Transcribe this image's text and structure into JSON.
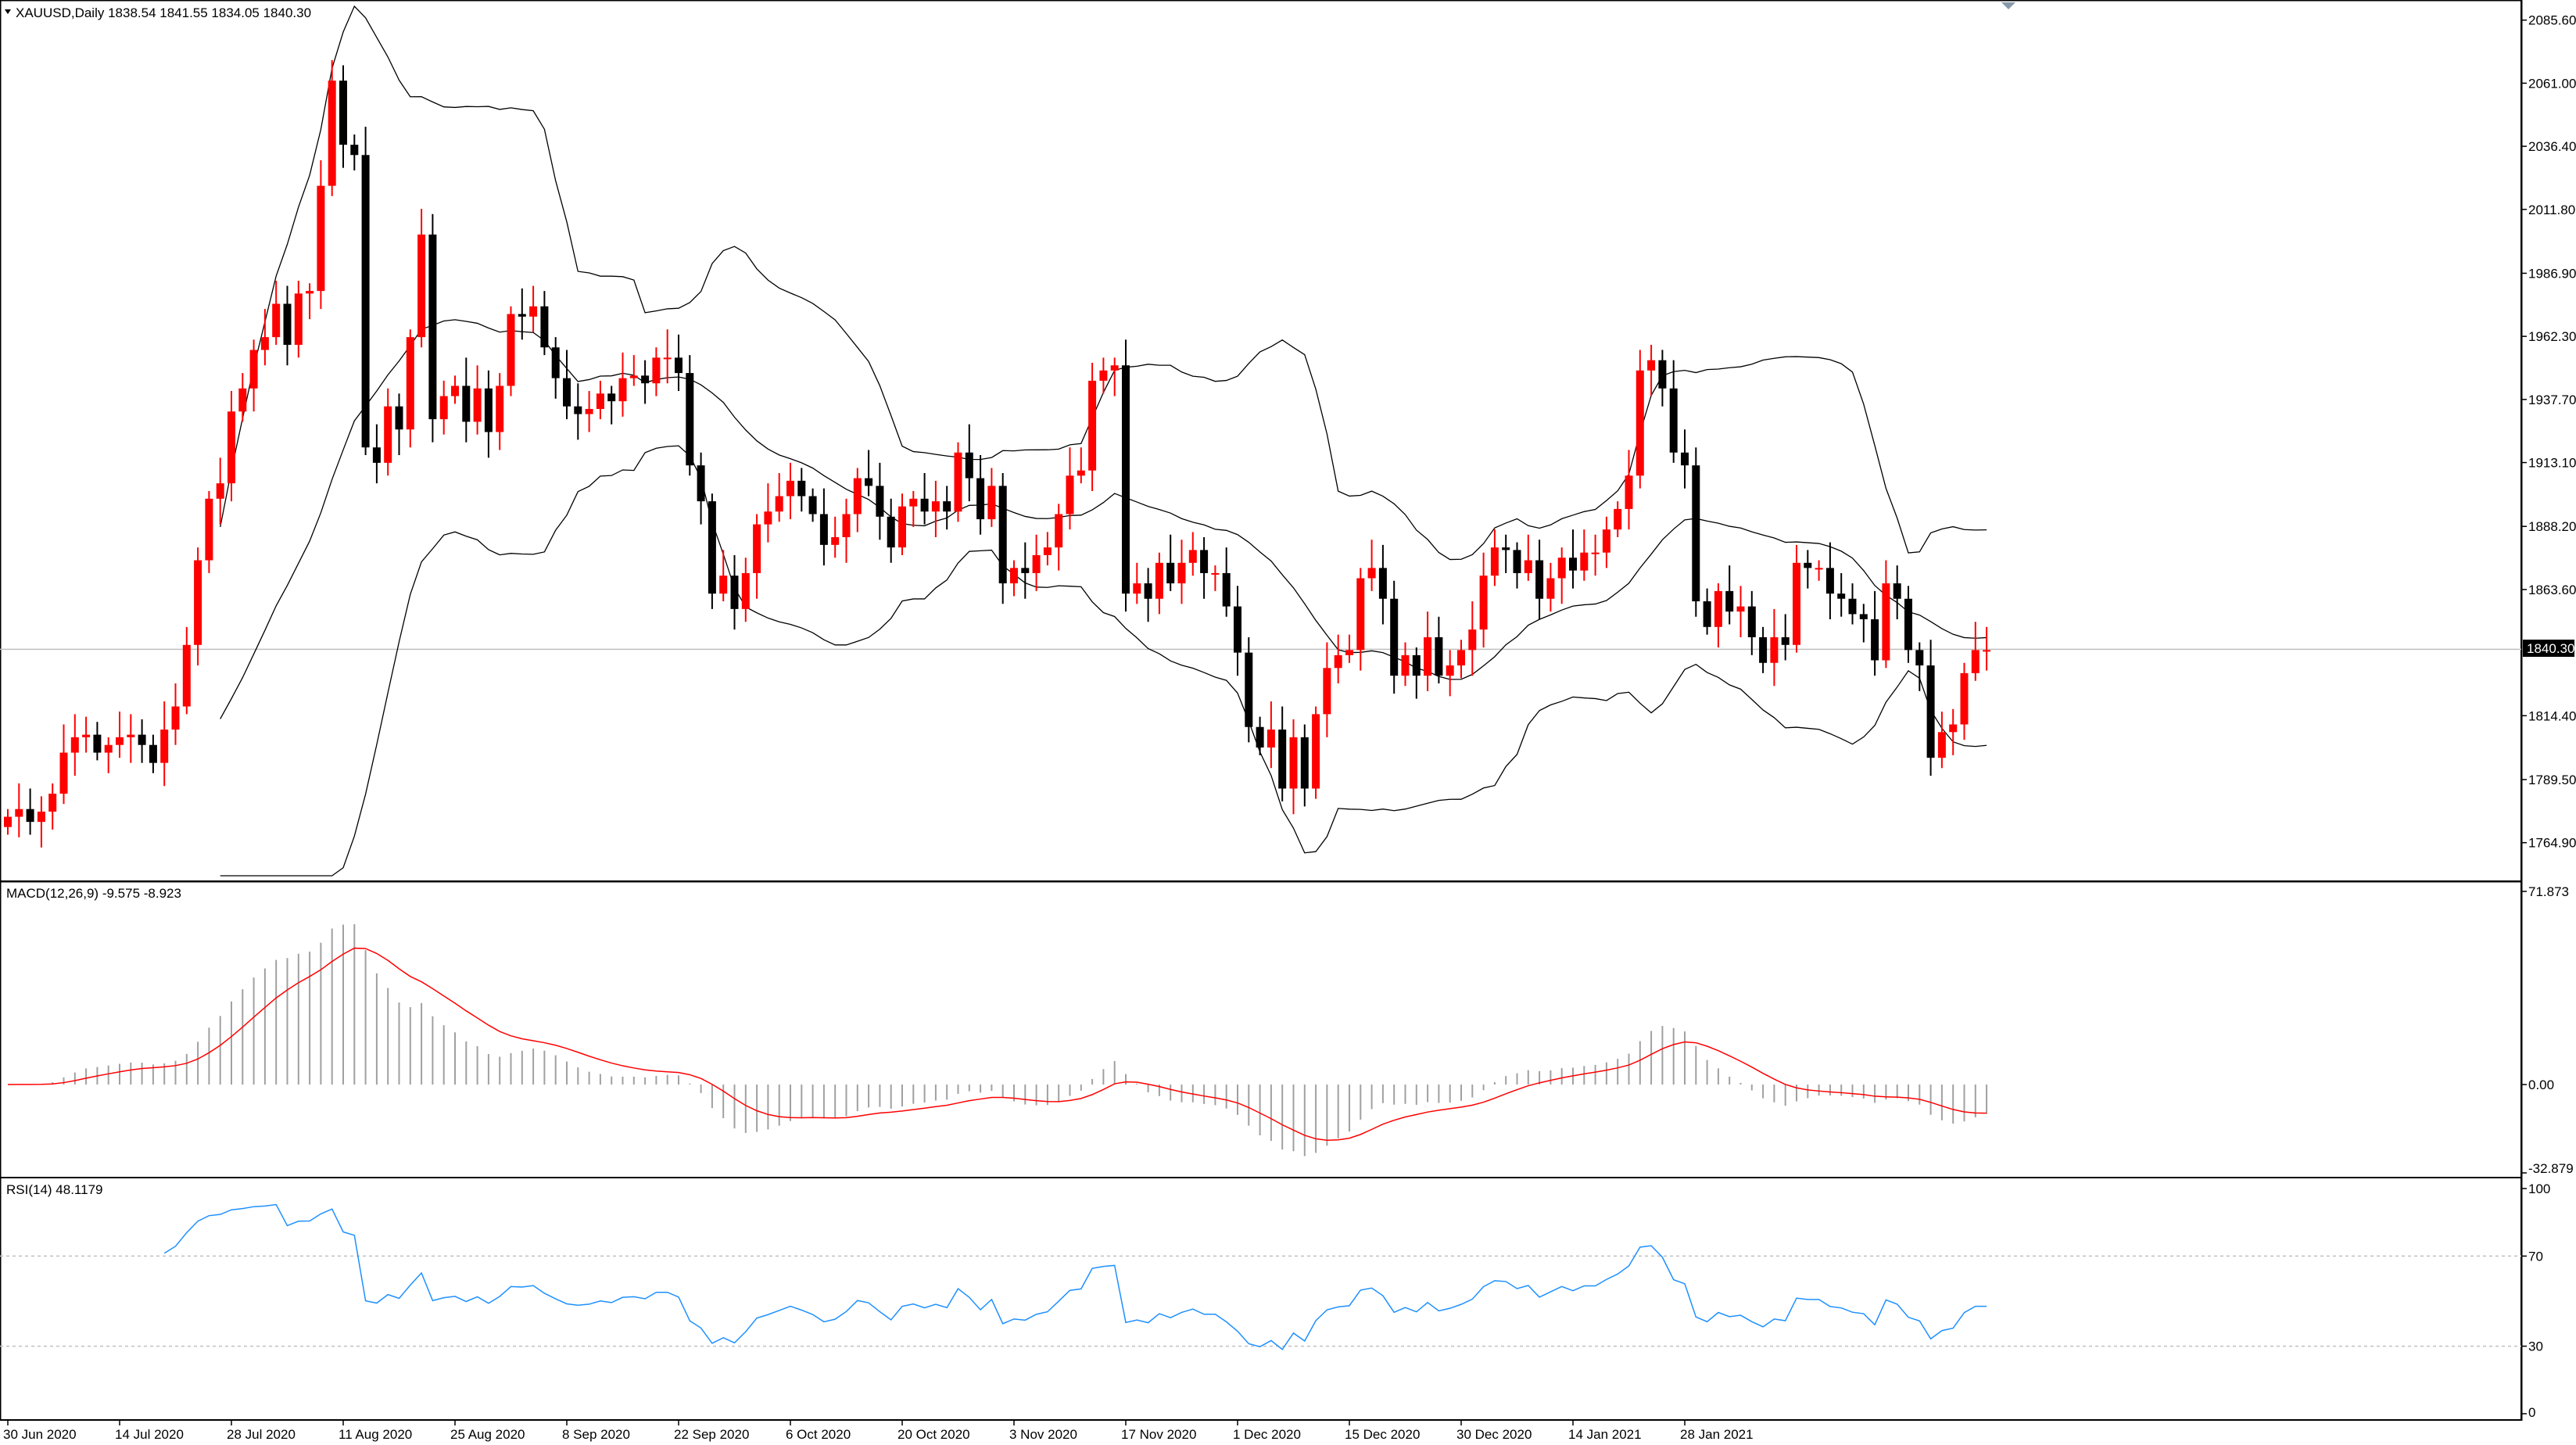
{
  "header": {
    "symbol_line": "XAUUSD,Daily  1838.54 1841.55 1834.05 1840.30",
    "macd_label": "MACD(12,26,9) -9.575 -8.923",
    "rsi_label": "RSI(14) 48.1179"
  },
  "colors": {
    "bull": "#ff0000",
    "bear": "#000000",
    "bands": "#000000",
    "macd_hist": "#a0a0a0",
    "macd_signal": "#ff0000",
    "rsi_line": "#1e90ff",
    "grid": "#c0c0c0"
  },
  "chart_data": [
    {
      "type": "candlestick",
      "symbol": "XAUUSD",
      "timeframe": "Daily",
      "indicator_overlay": "Bollinger Bands",
      "current_price": "1840.30",
      "ylim": [
        1752,
        2091
      ],
      "price_ticks": [
        "2085.60",
        "2061.00",
        "2036.40",
        "2011.80",
        "1986.90",
        "1962.30",
        "1937.70",
        "1913.10",
        "1888.20",
        "1863.60",
        "1814.40",
        "1789.50",
        "1764.90"
      ],
      "date_ticks": [
        {
          "index": 0,
          "label": "30 Jun 2020"
        },
        {
          "index": 10,
          "label": "14 Jul 2020"
        },
        {
          "index": 20,
          "label": "28 Jul 2020"
        },
        {
          "index": 30,
          "label": "11 Aug 2020"
        },
        {
          "index": 40,
          "label": "25 Aug 2020"
        },
        {
          "index": 50,
          "label": "8 Sep 2020"
        },
        {
          "index": 60,
          "label": "22 Sep 2020"
        },
        {
          "index": 70,
          "label": "6 Oct 2020"
        },
        {
          "index": 80,
          "label": "20 Oct 2020"
        },
        {
          "index": 90,
          "label": "3 Nov 2020"
        },
        {
          "index": 100,
          "label": "17 Nov 2020"
        },
        {
          "index": 110,
          "label": "1 Dec 2020"
        },
        {
          "index": 120,
          "label": "15 Dec 2020"
        },
        {
          "index": 130,
          "label": "30 Dec 2020"
        },
        {
          "index": 140,
          "label": "14 Jan 2021"
        },
        {
          "index": 150,
          "label": "28 Jan 2021"
        }
      ],
      "closes": [
        1775,
        1778,
        1773,
        1777,
        1784,
        1800,
        1806,
        1807,
        1800,
        1803,
        1806,
        1807,
        1803,
        1796,
        1809,
        1818,
        1842,
        1875,
        1899,
        1905,
        1933,
        1942,
        1957,
        1962,
        1975,
        1959,
        1979,
        1980,
        2021,
        2062,
        2037,
        2033,
        1919,
        1913,
        1935,
        1926,
        1962,
        2002,
        1930,
        1939,
        1943,
        1929,
        1942,
        1925,
        1943,
        1971,
        1970,
        1974,
        1958,
        1946,
        1935,
        1932,
        1934,
        1940,
        1937,
        1946,
        1947,
        1944,
        1954,
        1954,
        1948,
        1912,
        1898,
        1862,
        1869,
        1856,
        1870,
        1889,
        1894,
        1900,
        1906,
        1900,
        1893,
        1881,
        1884,
        1893,
        1907,
        1904,
        1892,
        1880,
        1896,
        1899,
        1894,
        1898,
        1894,
        1917,
        1907,
        1891,
        1904,
        1866,
        1872,
        1870,
        1877,
        1880,
        1893,
        1908,
        1910,
        1945,
        1949,
        1951,
        1862,
        1866,
        1860,
        1874,
        1866,
        1874,
        1879,
        1870,
        1870,
        1857,
        1839,
        1810,
        1802,
        1809,
        1786,
        1806,
        1786,
        1815,
        1833,
        1838,
        1840,
        1868,
        1872,
        1860,
        1830,
        1838,
        1830,
        1845,
        1830,
        1834,
        1840,
        1848,
        1869,
        1880,
        1879,
        1870,
        1875,
        1860,
        1868,
        1876,
        1871,
        1878,
        1878,
        1887,
        1895,
        1908,
        1949,
        1953,
        1942,
        1917,
        1912,
        1859,
        1849,
        1863,
        1855,
        1857,
        1845,
        1835,
        1845,
        1842,
        1874,
        1872,
        1872,
        1862,
        1860,
        1854,
        1852,
        1836,
        1866,
        1860,
        1840,
        1834,
        1798,
        1808,
        1811,
        1831,
        1840,
        1840
      ],
      "opens_note": "open of each bar = previous close",
      "bollinger_mid_approx": "20-period SMA of closes",
      "ma_period": 20,
      "bb_stddev": 2
    },
    {
      "type": "bar",
      "name": "MACD(12,26,9)",
      "ylim": [
        -32.879,
        71.873
      ],
      "ticks": [
        "71.873",
        "0.00",
        "-32.879"
      ],
      "last_macd": -9.575,
      "last_signal": -8.923
    },
    {
      "type": "line",
      "name": "RSI(14)",
      "ylim": [
        0,
        100
      ],
      "ticks": [
        "100",
        "70",
        "30",
        "0"
      ],
      "levels": [
        70,
        30
      ],
      "last_value": 48.1179
    }
  ]
}
